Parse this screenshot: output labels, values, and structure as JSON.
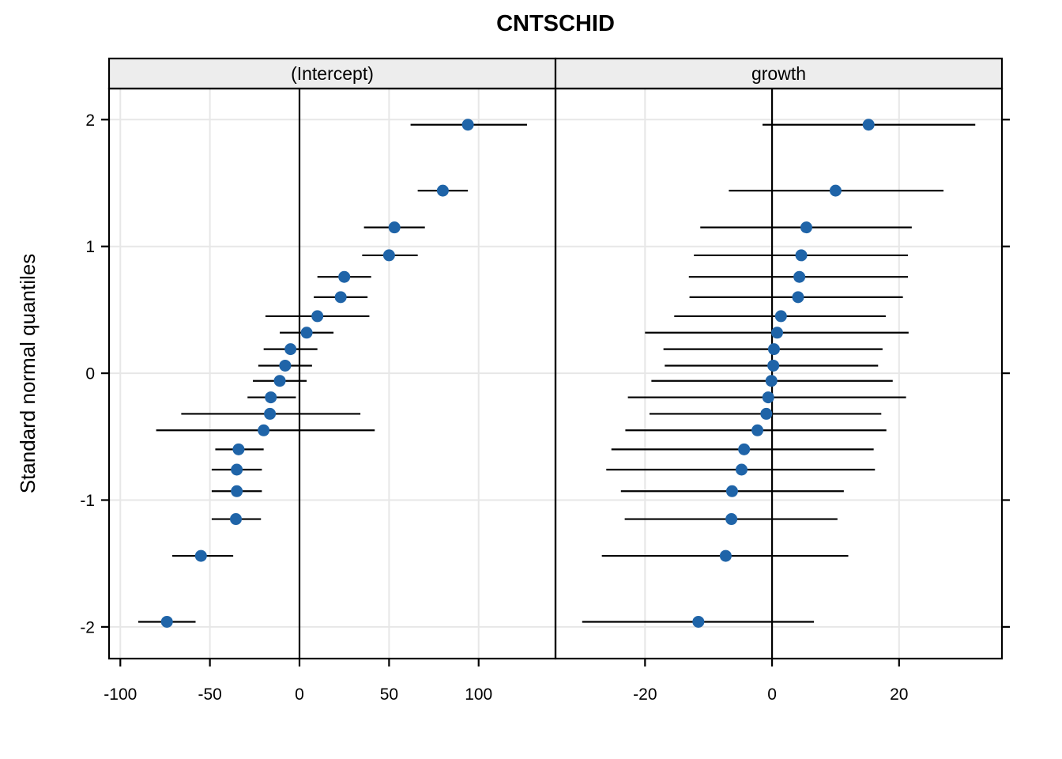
{
  "title": "CNTSCHID",
  "y_axis": {
    "label": "Standard normal quantiles",
    "tick_labels": [
      "2",
      "1",
      "0",
      "-1",
      "-2"
    ]
  },
  "colors": {
    "point": "#1f64a8",
    "interval_line": "#000000",
    "gridline": "#e7e7e7",
    "strip_background": "#ededed",
    "border": "#000000"
  },
  "chart_data": {
    "type": "scatter",
    "subtype": "caterpillar-qq-dotplot",
    "title": "CNTSCHID",
    "ylabel": "Standard normal quantiles",
    "xlabel": "",
    "y_ticks": [
      2,
      1,
      0,
      -1,
      -2
    ],
    "ylim": [
      -2.25,
      2.245
    ],
    "grid": true,
    "legend": "none",
    "point_color": "#1f64a8",
    "columns": [
      "std_normal_quantile",
      "estimate",
      "interval_low",
      "interval_high"
    ],
    "panels": [
      {
        "label": "(Intercept)",
        "x_ticks": [
          -100,
          -50,
          0,
          50,
          100
        ],
        "x_tick_labels": [
          "-100",
          "-50",
          "0",
          "50",
          "100"
        ],
        "xlim": [
          -106.3,
          142.9
        ],
        "reference_line_x": 0,
        "points": [
          [
            1.96,
            94,
            62,
            127
          ],
          [
            1.44,
            80,
            66,
            94
          ],
          [
            1.15,
            53,
            36,
            70
          ],
          [
            0.93,
            50,
            35,
            66
          ],
          [
            0.76,
            25,
            10,
            40
          ],
          [
            0.6,
            23,
            8,
            38
          ],
          [
            0.45,
            10,
            -19,
            39
          ],
          [
            0.32,
            4,
            -11,
            19
          ],
          [
            0.19,
            -5,
            -20,
            10
          ],
          [
            0.06,
            -8,
            -23,
            7
          ],
          [
            -0.06,
            -11,
            -26,
            4
          ],
          [
            -0.19,
            -16,
            -29,
            -2
          ],
          [
            -0.32,
            -16.5,
            -66,
            34
          ],
          [
            -0.45,
            -20,
            -80,
            42
          ],
          [
            -0.6,
            -34,
            -47,
            -20
          ],
          [
            -0.76,
            -35,
            -49,
            -21
          ],
          [
            -0.93,
            -35,
            -49,
            -21
          ],
          [
            -1.15,
            -35.5,
            -49,
            -21.5
          ],
          [
            -1.44,
            -55,
            -71,
            -37
          ],
          [
            -1.96,
            -74,
            -90,
            -58
          ]
        ]
      },
      {
        "label": "growth",
        "x_ticks": [
          -20,
          0,
          20
        ],
        "x_tick_labels": [
          "-20",
          "0",
          "20"
        ],
        "xlim": [
          -34.1,
          36.2
        ],
        "reference_line_x": 0,
        "points": [
          [
            1.96,
            15.2,
            -1.5,
            32
          ],
          [
            1.44,
            10,
            -6.8,
            27
          ],
          [
            1.15,
            5.4,
            -11.3,
            22
          ],
          [
            0.93,
            4.6,
            -12.3,
            21.4
          ],
          [
            0.76,
            4.3,
            -13.1,
            21.4
          ],
          [
            0.6,
            4.1,
            -13.0,
            20.6
          ],
          [
            0.45,
            1.4,
            -15.4,
            17.9
          ],
          [
            0.32,
            0.8,
            -20.0,
            21.5
          ],
          [
            0.19,
            0.3,
            -17.1,
            17.4
          ],
          [
            0.06,
            0.2,
            -16.9,
            16.7
          ],
          [
            -0.06,
            -0.1,
            -19.0,
            19.0
          ],
          [
            -0.19,
            -0.6,
            -22.7,
            21.1
          ],
          [
            -0.32,
            -0.9,
            -19.3,
            17.2
          ],
          [
            -0.45,
            -2.3,
            -23.1,
            18.0
          ],
          [
            -0.6,
            -4.4,
            -25.3,
            16.0
          ],
          [
            -0.76,
            -4.8,
            -26.1,
            16.2
          ],
          [
            -0.93,
            -6.3,
            -23.8,
            11.3
          ],
          [
            -1.15,
            -6.4,
            -23.2,
            10.3
          ],
          [
            -1.44,
            -7.3,
            -26.8,
            12.0
          ],
          [
            -1.96,
            -11.6,
            -29.9,
            6.6
          ]
        ]
      }
    ]
  }
}
